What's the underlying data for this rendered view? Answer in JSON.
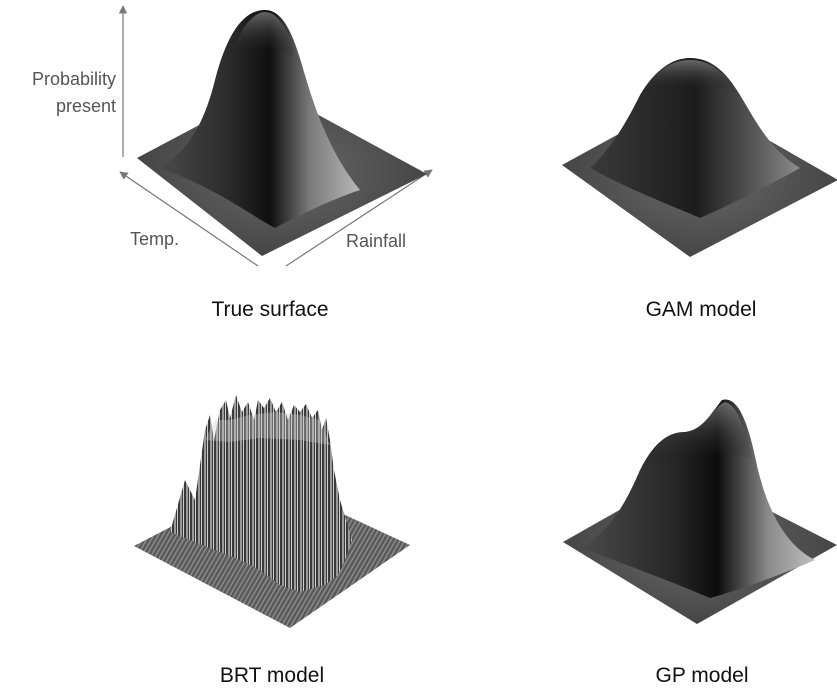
{
  "axes": {
    "z_label_line1": "Probability",
    "z_label_line2": "present",
    "x_label": "Temp.",
    "y_label": "Rainfall"
  },
  "panels": [
    {
      "id": "true",
      "label": "True surface"
    },
    {
      "id": "gam",
      "label": "GAM model"
    },
    {
      "id": "brt",
      "label": "BRT model"
    },
    {
      "id": "gp",
      "label": "GP model"
    }
  ],
  "colors": {
    "surface_dark": "#111111",
    "surface_light": "#c8c8c8",
    "axis_arrow": "#777777"
  }
}
